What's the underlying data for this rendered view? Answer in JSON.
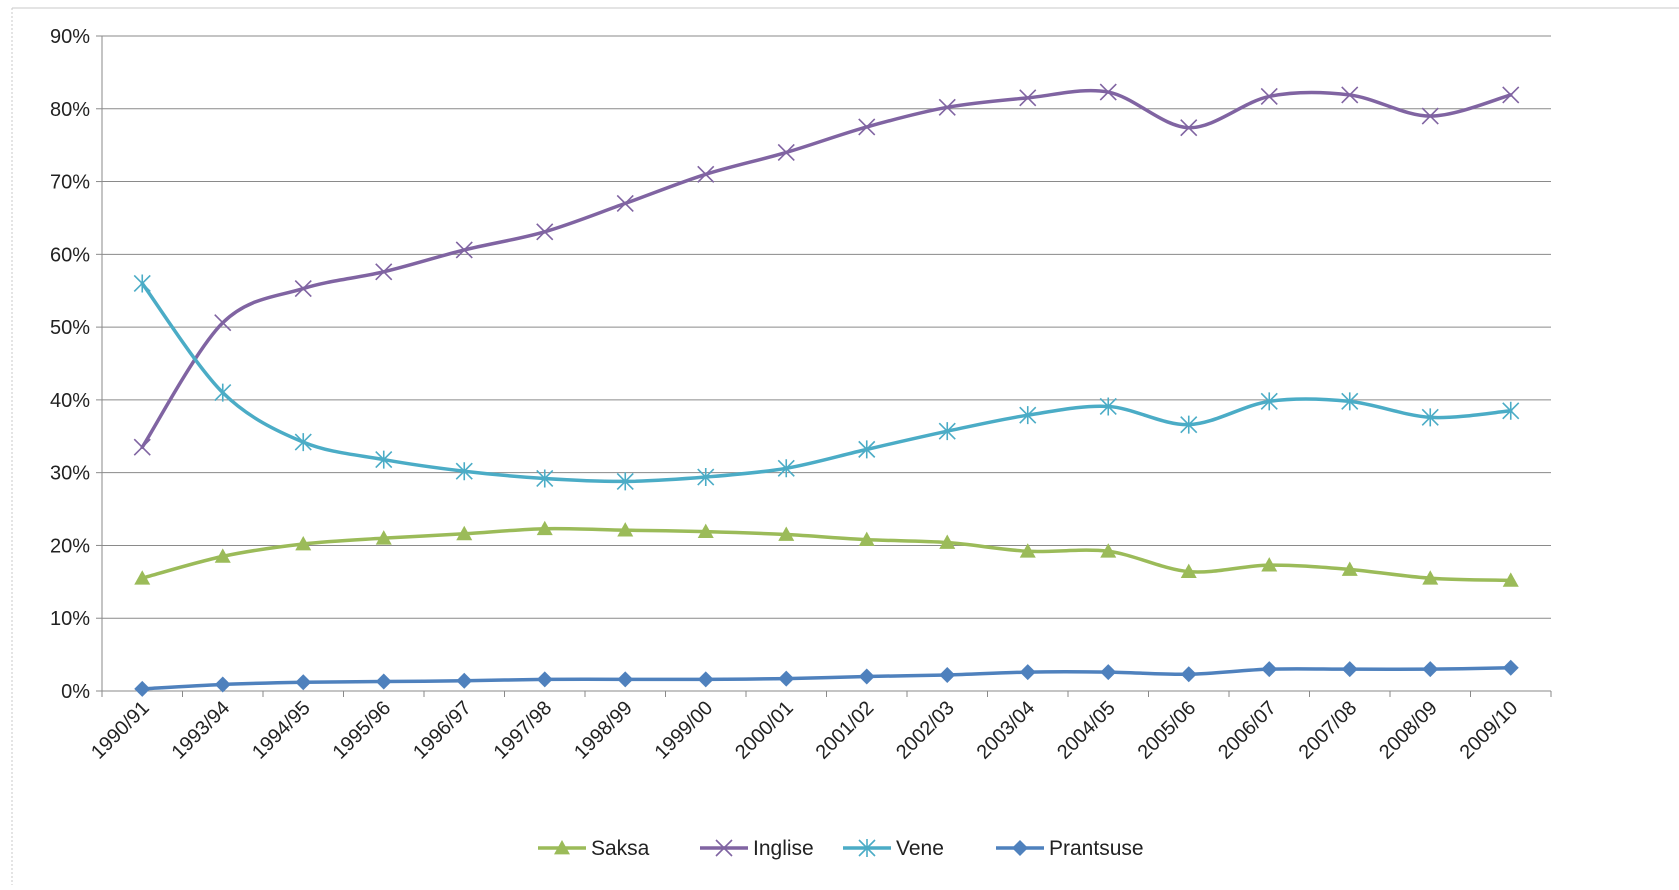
{
  "chart_data": {
    "type": "line",
    "title": "",
    "xlabel": "",
    "ylabel": "",
    "categories": [
      "1990/91",
      "1993/94",
      "1994/95",
      "1995/96",
      "1996/97",
      "1997/98",
      "1998/99",
      "1999/00",
      "2000/01",
      "2001/02",
      "2002/03",
      "2003/04",
      "2004/05",
      "2005/06",
      "2006/07",
      "2007/08",
      "2008/09",
      "2009/10"
    ],
    "y_ticks": [
      "0%",
      "10%",
      "20%",
      "30%",
      "40%",
      "50%",
      "60%",
      "70%",
      "80%",
      "90%"
    ],
    "ylim": [
      0,
      90
    ],
    "y_unit": "%",
    "grid": "horizontal",
    "legend_position": "bottom",
    "series": [
      {
        "name": "Saksa",
        "color": "#9BBB59",
        "marker": "triangle",
        "values": [
          15.5,
          18.5,
          20.2,
          21.0,
          21.6,
          22.3,
          22.1,
          21.9,
          21.5,
          20.8,
          20.4,
          19.2,
          19.2,
          16.4,
          17.3,
          16.7,
          15.5,
          15.2
        ]
      },
      {
        "name": "Inglise",
        "color": "#8064A2",
        "marker": "x",
        "values": [
          33.5,
          50.6,
          55.3,
          57.6,
          60.6,
          63.1,
          67.0,
          71.0,
          74.0,
          77.5,
          80.2,
          81.5,
          82.3,
          77.4,
          81.7,
          81.9,
          79.0,
          81.9
        ]
      },
      {
        "name": "Vene",
        "color": "#4BACC6",
        "marker": "star",
        "values": [
          56.0,
          41.0,
          34.2,
          31.8,
          30.2,
          29.2,
          28.8,
          29.4,
          30.6,
          33.2,
          35.7,
          37.9,
          39.1,
          36.6,
          39.8,
          39.8,
          37.6,
          38.5
        ]
      },
      {
        "name": "Prantsuse",
        "color": "#4F81BD",
        "marker": "diamond",
        "values": [
          0.3,
          0.9,
          1.2,
          1.3,
          1.4,
          1.6,
          1.6,
          1.6,
          1.7,
          2.0,
          2.2,
          2.6,
          2.6,
          2.3,
          3.0,
          3.0,
          3.0,
          3.2
        ]
      }
    ]
  }
}
